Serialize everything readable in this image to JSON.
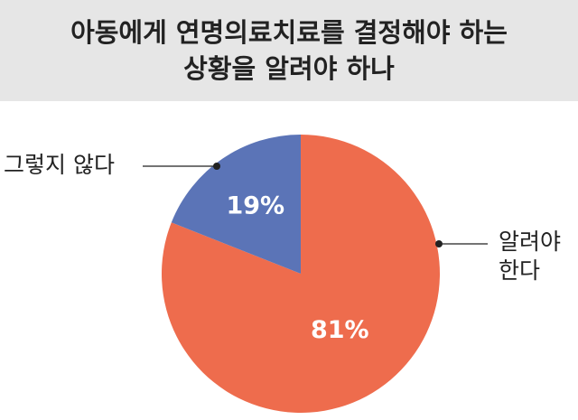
{
  "chart_data": {
    "type": "pie",
    "title": "아동에게 연명의료치료를 결정해야 하는\n상황을 알려야 하나",
    "categories": [
      "알려야\n한다",
      "그렇지 않다"
    ],
    "values": [
      81,
      19
    ],
    "value_labels": [
      "81%",
      "19%"
    ],
    "colors": [
      "#ee6c4d",
      "#5b74b7"
    ]
  }
}
